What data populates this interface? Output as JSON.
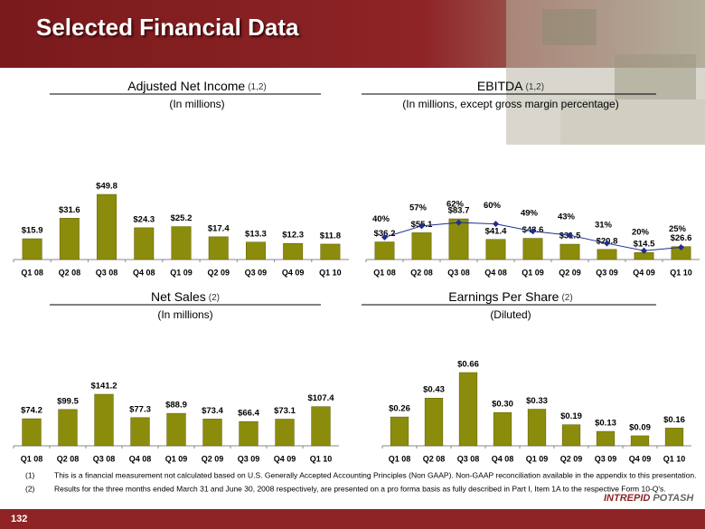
{
  "header": {
    "title": "Selected Financial Data"
  },
  "footnotes": [
    {
      "marker": "(1)",
      "text": "This is a financial  measurement not calculated based on U.S. Generally Accepted Accounting Principles (Non GAAP). Non-GAAP reconciliation available in the appendix to this presentation."
    },
    {
      "marker": "(2)",
      "text": "Results for the three months ended March 31 and June 30, 2008 respectively, are presented on a pro forma basis as fully described in Part I, Item 1A to the respective Form 10-Q's."
    }
  ],
  "page_number": "132",
  "logo": {
    "word1": "INTREPID",
    "word2": "POTASH"
  },
  "chart_data": [
    {
      "type": "bar",
      "title": "Adjusted Net Income",
      "title_note": "(1,2)",
      "subtitle": "(In millions)",
      "categories": [
        "Q1 08",
        "Q2 08",
        "Q3 08",
        "Q4 08",
        "Q1 09",
        "Q2 09",
        "Q3 09",
        "Q4 09",
        "Q1 10"
      ],
      "color": "#8c8c0c",
      "values": [
        15.9,
        31.6,
        49.8,
        24.3,
        25.2,
        17.4,
        13.3,
        12.3,
        11.8
      ],
      "value_labels": [
        "$15.9",
        "$31.6",
        "$49.8",
        "$24.3",
        "$25.2",
        "$17.4",
        "$13.3",
        "$12.3",
        "$11.8"
      ]
    },
    {
      "type": "bar_line",
      "title": "EBITDA",
      "title_note": "(1,2)",
      "subtitle": "(In millions, except gross margin percentage)",
      "categories": [
        "Q1 08",
        "Q2 08",
        "Q3 08",
        "Q4 08",
        "Q1 09",
        "Q2 09",
        "Q3 09",
        "Q4 09",
        "Q1 10"
      ],
      "series": [
        {
          "color": "#8c8c0c",
          "values": [
            36.2,
            55.1,
            83.7,
            41.4,
            43.6,
            31.5,
            20.8,
            14.5,
            26.6
          ],
          "value_labels": [
            "$36.2",
            "$55.1",
            "$83.7",
            "$41.4",
            "$43.6",
            "$31.5",
            "$20.8",
            "$14.5",
            "$26.6"
          ]
        },
        {
          "type": "line",
          "axis": "y2",
          "color": "#1f2f8c",
          "values": [
            40,
            57,
            62,
            60,
            49,
            43,
            31,
            20,
            25
          ],
          "value_labels": [
            "40%",
            "57%",
            "62%",
            "60%",
            "49%",
            "43%",
            "31%",
            "20%",
            "25%"
          ]
        }
      ]
    },
    {
      "type": "bar",
      "title": "Net Sales",
      "title_note": "(2)",
      "subtitle": "(In millions)",
      "categories": [
        "Q1 08",
        "Q2 08",
        "Q3 08",
        "Q4 08",
        "Q1 09",
        "Q2 09",
        "Q3 09",
        "Q4 09",
        "Q1 10"
      ],
      "color": "#8c8c0c",
      "values": [
        74.2,
        99.5,
        141.2,
        77.3,
        88.9,
        73.4,
        66.4,
        73.1,
        107.4
      ],
      "value_labels": [
        "$74.2",
        "$99.5",
        "$141.2",
        "$77.3",
        "$88.9",
        "$73.4",
        "$66.4",
        "$73.1",
        "$107.4"
      ]
    },
    {
      "type": "bar",
      "title": "Earnings Per Share",
      "title_note": "(2)",
      "subtitle": "(Diluted)",
      "categories": [
        "Q1 08",
        "Q2 08",
        "Q3 08",
        "Q4 08",
        "Q1 09",
        "Q2 09",
        "Q3 09",
        "Q4 09",
        "Q1 10"
      ],
      "color": "#8c8c0c",
      "values": [
        0.26,
        0.43,
        0.66,
        0.3,
        0.33,
        0.19,
        0.13,
        0.09,
        0.16
      ],
      "value_labels": [
        "$0.26",
        "$0.43",
        "$0.66",
        "$0.30",
        "$0.33",
        "$0.19",
        "$0.13",
        "$0.09",
        "$0.16"
      ]
    }
  ]
}
